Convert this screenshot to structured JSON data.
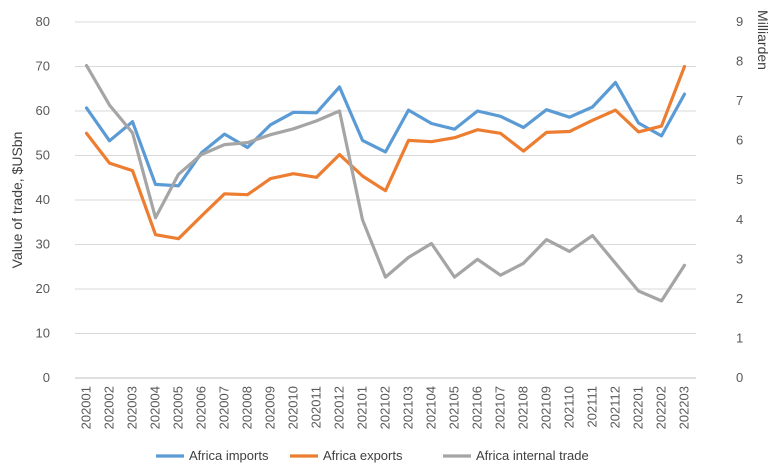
{
  "chart_data": {
    "type": "line",
    "title": "",
    "ylabel": "Value of trade, $USbn",
    "y2label": "Milliarden",
    "ylim": [
      0,
      80
    ],
    "y2lim": [
      0,
      9
    ],
    "yticks": [
      "0",
      "10",
      "20",
      "30",
      "40",
      "50",
      "60",
      "70",
      "80"
    ],
    "y2ticks": [
      "0",
      "1",
      "2",
      "3",
      "4",
      "5",
      "6",
      "7",
      "8",
      "9"
    ],
    "grid": true,
    "legend_position": "bottom",
    "categories": [
      "202001",
      "202002",
      "202003",
      "202004",
      "202005",
      "202006",
      "202007",
      "202008",
      "202009",
      "202010",
      "202011",
      "202012",
      "202101",
      "202102",
      "202103",
      "202104",
      "202105",
      "202106",
      "202107",
      "202108",
      "202109",
      "202110",
      "202111",
      "202112",
      "202201",
      "202202",
      "202203"
    ],
    "series": [
      {
        "name": "Africa imports",
        "axis": "left",
        "color": "#5b9bd5",
        "values": [
          60.7,
          53.3,
          57.6,
          43.5,
          43.2,
          50.6,
          54.8,
          51.8,
          56.9,
          59.7,
          59.6,
          65.4,
          53.4,
          50.8,
          60.2,
          57.2,
          55.9,
          60.0,
          58.8,
          56.3,
          60.3,
          58.6,
          60.9,
          66.4,
          57.3,
          54.4,
          63.8
        ]
      },
      {
        "name": "Africa exports",
        "axis": "left",
        "color": "#ed7d31",
        "values": [
          55.0,
          48.3,
          46.6,
          32.2,
          31.3,
          36.4,
          41.4,
          41.2,
          44.8,
          45.9,
          45.1,
          50.2,
          45.4,
          42.1,
          53.4,
          53.1,
          54.0,
          55.8,
          55.0,
          51.0,
          55.2,
          55.4,
          57.9,
          60.2,
          55.3,
          56.6,
          70.0
        ]
      },
      {
        "name": "Africa internal trade",
        "axis": "right",
        "color": "#a5a5a5",
        "values": [
          7.9,
          6.9,
          6.2,
          4.05,
          5.15,
          5.65,
          5.9,
          5.95,
          6.15,
          6.3,
          6.5,
          6.75,
          4.0,
          2.55,
          3.05,
          3.4,
          2.55,
          3.0,
          2.6,
          2.9,
          3.5,
          3.2,
          3.6,
          2.9,
          2.2,
          1.95,
          2.85
        ]
      }
    ]
  }
}
